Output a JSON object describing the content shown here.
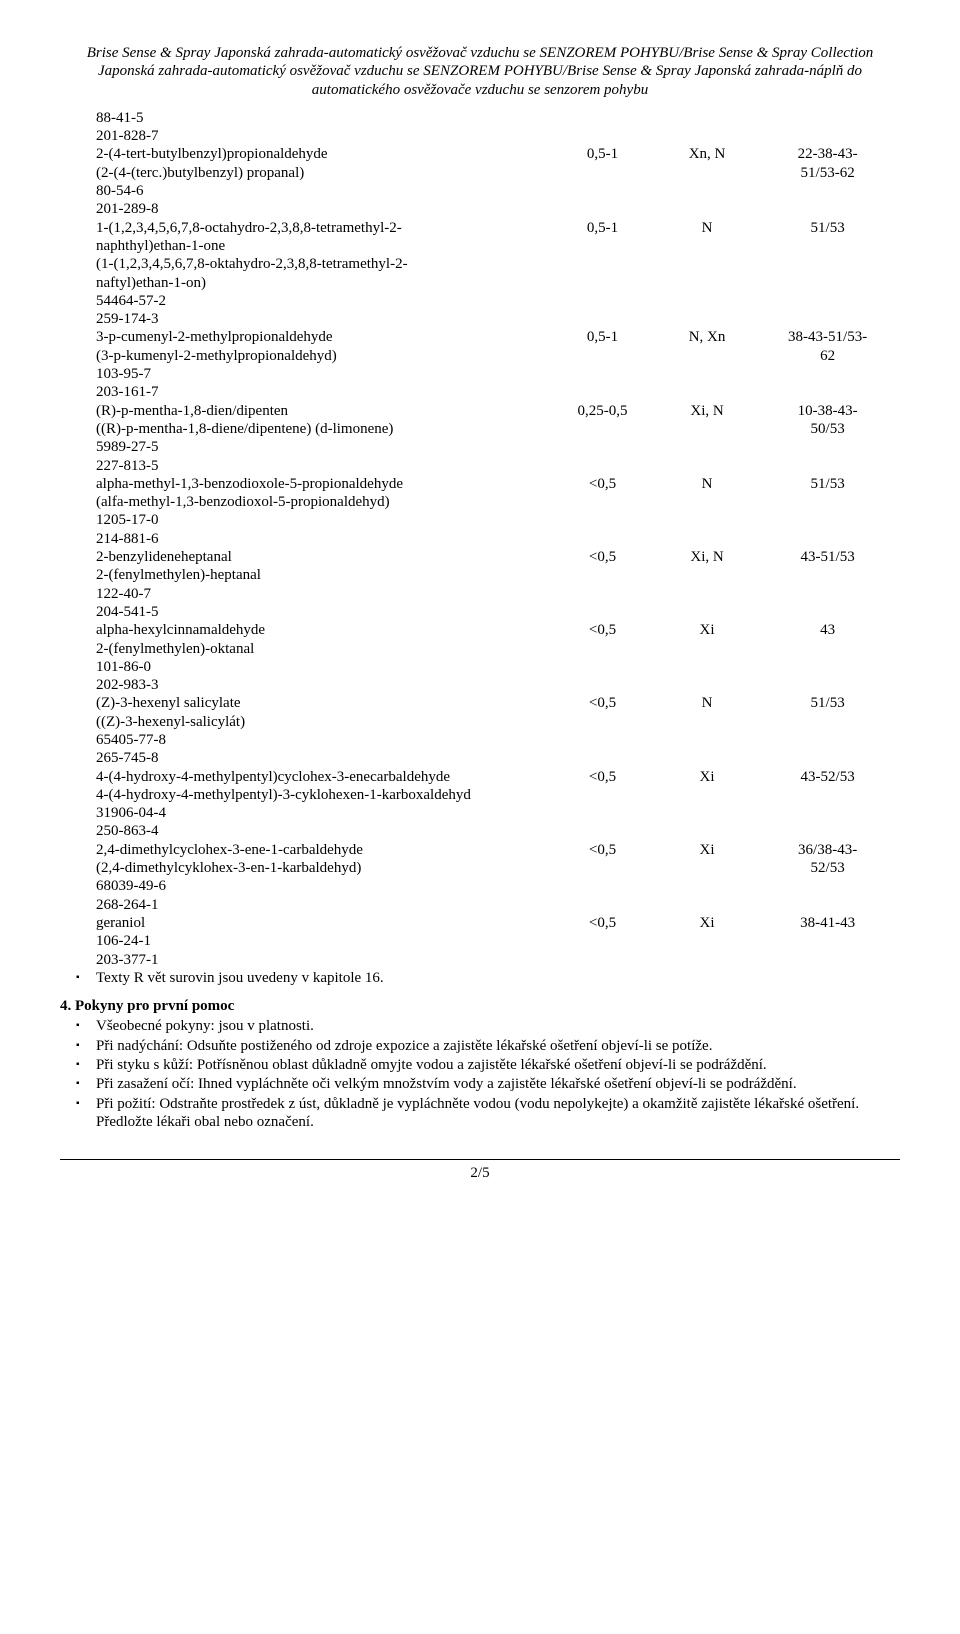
{
  "header": "Brise Sense & Spray Japonská zahrada-automatický osvěžovač vzduchu se SENZOREM POHYBU/Brise Sense & Spray Collection Japonská zahrada-automatický osvěžovač vzduchu se SENZOREM POHYBU/Brise Sense & Spray Japonská zahrada-náplň do automatického osvěžovače vzduchu se senzorem pohybu",
  "rows": [
    {
      "lines": [
        "88-41-5"
      ],
      "c": "",
      "s": "",
      "r": ""
    },
    {
      "lines": [
        "201-828-7"
      ],
      "c": "",
      "s": "",
      "r": ""
    },
    {
      "lines": [
        "2-(4-tert-butylbenzyl)propionaldehyde",
        "(2-(4-(terc.)butylbenzyl) propanal)"
      ],
      "c": "0,5-1",
      "s": "Xn, N",
      "r": [
        "22-38-43-",
        "51/53-62"
      ]
    },
    {
      "lines": [
        "80-54-6"
      ],
      "c": "",
      "s": "",
      "r": ""
    },
    {
      "lines": [
        "201-289-8"
      ],
      "c": "",
      "s": "",
      "r": ""
    },
    {
      "lines": [
        "1-(1,2,3,4,5,6,7,8-octahydro-2,3,8,8-tetramethyl-2-",
        "naphthyl)ethan-1-one",
        "(1-(1,2,3,4,5,6,7,8-oktahydro-2,3,8,8-tetramethyl-2-",
        "naftyl)ethan-1-on)"
      ],
      "c": "0,5-1",
      "s": "N",
      "r": "51/53"
    },
    {
      "lines": [
        "54464-57-2"
      ],
      "c": "",
      "s": "",
      "r": ""
    },
    {
      "lines": [
        "259-174-3"
      ],
      "c": "",
      "s": "",
      "r": ""
    },
    {
      "lines": [
        "3-p-cumenyl-2-methylpropionaldehyde",
        "(3-p-kumenyl-2-methylpropionaldehyd)"
      ],
      "c": "0,5-1",
      "s": "N, Xn",
      "r": [
        "38-43-51/53-",
        "62"
      ]
    },
    {
      "lines": [
        "103-95-7"
      ],
      "c": "",
      "s": "",
      "r": ""
    },
    {
      "lines": [
        "203-161-7"
      ],
      "c": "",
      "s": "",
      "r": ""
    },
    {
      "lines": [
        "(R)-p-mentha-1,8-dien/dipenten",
        "((R)-p-mentha-1,8-diene/dipentene) (d-limonene)"
      ],
      "c": "0,25-0,5",
      "s": "Xi, N",
      "r": [
        "10-38-43-",
        "50/53"
      ]
    },
    {
      "lines": [
        "5989-27-5"
      ],
      "c": "",
      "s": "",
      "r": ""
    },
    {
      "lines": [
        "227-813-5"
      ],
      "c": "",
      "s": "",
      "r": ""
    },
    {
      "lines": [
        "alpha-methyl-1,3-benzodioxole-5-propionaldehyde",
        "(alfa-methyl-1,3-benzodioxol-5-propionaldehyd)"
      ],
      "c": "<0,5",
      "s": "N",
      "r": "51/53"
    },
    {
      "lines": [
        "1205-17-0"
      ],
      "c": "",
      "s": "",
      "r": ""
    },
    {
      "lines": [
        "214-881-6"
      ],
      "c": "",
      "s": "",
      "r": ""
    },
    {
      "lines": [
        "2-benzylideneheptanal",
        "2-(fenylmethylen)-heptanal"
      ],
      "c": "<0,5",
      "s": "Xi, N",
      "r": "43-51/53"
    },
    {
      "lines": [
        "122-40-7"
      ],
      "c": "",
      "s": "",
      "r": ""
    },
    {
      "lines": [
        "204-541-5"
      ],
      "c": "",
      "s": "",
      "r": ""
    },
    {
      "lines": [
        "alpha-hexylcinnamaldehyde",
        "2-(fenylmethylen)-oktanal"
      ],
      "c": "<0,5",
      "s": "Xi",
      "r": "43"
    },
    {
      "lines": [
        "101-86-0"
      ],
      "c": "",
      "s": "",
      "r": ""
    },
    {
      "lines": [
        "202-983-3"
      ],
      "c": "",
      "s": "",
      "r": ""
    },
    {
      "lines": [
        "(Z)-3-hexenyl salicylate",
        "((Z)-3-hexenyl-salicylát)"
      ],
      "c": "<0,5",
      "s": "N",
      "r": "51/53"
    },
    {
      "lines": [
        "65405-77-8"
      ],
      "c": "",
      "s": "",
      "r": ""
    },
    {
      "lines": [
        "265-745-8"
      ],
      "c": "",
      "s": "",
      "r": ""
    },
    {
      "lines": [
        "4-(4-hydroxy-4-methylpentyl)cyclohex-3-enecarbaldehyde",
        "4-(4-hydroxy-4-methylpentyl)-3-cyklohexen-1-karboxaldehyd"
      ],
      "c": "<0,5",
      "s": "Xi",
      "r": "43-52/53"
    },
    {
      "lines": [
        "31906-04-4"
      ],
      "c": "",
      "s": "",
      "r": ""
    },
    {
      "lines": [
        "250-863-4"
      ],
      "c": "",
      "s": "",
      "r": ""
    },
    {
      "lines": [
        "2,4-dimethylcyclohex-3-ene-1-carbaldehyde",
        "(2,4-dimethylcyklohex-3-en-1-karbaldehyd)"
      ],
      "c": "<0,5",
      "s": "Xi",
      "r": [
        "36/38-43-",
        "52/53"
      ]
    },
    {
      "lines": [
        "68039-49-6"
      ],
      "c": "",
      "s": "",
      "r": ""
    },
    {
      "lines": [
        "268-264-1"
      ],
      "c": "",
      "s": "",
      "r": ""
    },
    {
      "lines": [
        "geraniol"
      ],
      "c": "<0,5",
      "s": "Xi",
      "r": "38-41-43"
    },
    {
      "lines": [
        "106-24-1"
      ],
      "c": "",
      "s": "",
      "r": ""
    },
    {
      "lines": [
        "203-377-1"
      ],
      "c": "",
      "s": "",
      "r": ""
    }
  ],
  "note_bullet": "Texty R vět surovin jsou uvedeny v kapitole 16.",
  "section4": {
    "title": "4. Pokyny pro první pomoc",
    "items": [
      "Všeobecné pokyny: jsou v platnosti.",
      "Při nadýchání: Odsuňte postiženého od zdroje expozice a zajistěte lékařské ošetření objeví-li se potíže.",
      "Při styku s kůží: Potřísněnou oblast důkladně omyjte vodou a zajistěte lékařské ošetření objeví-li se podráždění.",
      "Při zasažení očí: Ihned vypláchněte oči velkým množstvím vody a  zajistěte lékařské ošetření objeví-li se podráždění.",
      "Při požití: Odstraňte prostředek z úst, důkladně je vypláchněte vodou (vodu nepolykejte) a okamžitě zajistěte lékařské ošetření. Předložte lékaři obal nebo označení."
    ]
  },
  "pagenum": "2/5"
}
